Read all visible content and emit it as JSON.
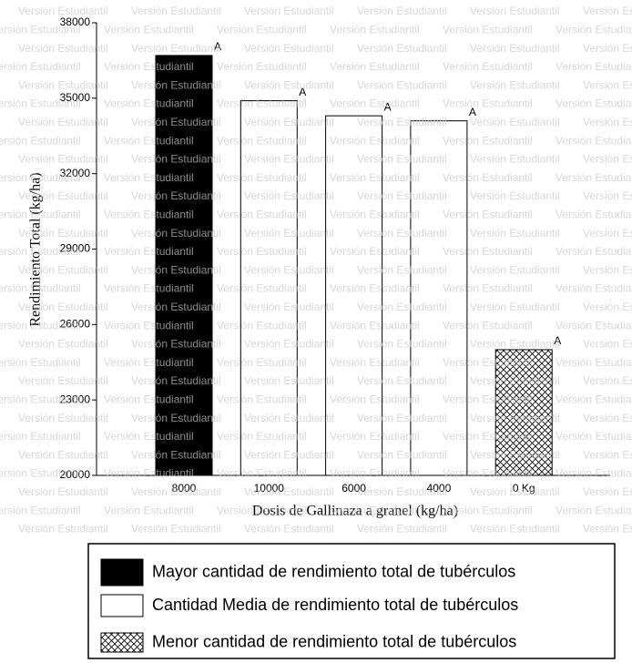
{
  "chart_data": {
    "type": "bar",
    "watermark": "Versión Estudiantil",
    "xlabel": "Dosis de Gallinaza a granel (kg/ha)",
    "ylabel": "Rendimiento Total (kg/ha)",
    "categories": [
      "8000",
      "10000",
      "6000",
      "4000",
      "0 Kg"
    ],
    "values": [
      36700,
      34900,
      34300,
      34100,
      25000
    ],
    "colors": [
      "#000000",
      "#ffffff",
      "#ffffff",
      "#ffffff",
      "#ffffff"
    ],
    "hatch": [
      false,
      false,
      false,
      false,
      true
    ],
    "annotations": [
      "A",
      "A",
      "A",
      "A",
      "A"
    ],
    "ylim": [
      20000,
      38000
    ],
    "yticks": [
      20000,
      23000,
      26000,
      29000,
      32000,
      35000,
      38000
    ],
    "legend": [
      {
        "label": "Mayor cantidad de rendimiento total de tubérculos",
        "color": "#000000",
        "hatch": false
      },
      {
        "label": "Cantidad Media de rendimiento total de tubérculos",
        "color": "#ffffff",
        "hatch": false
      },
      {
        "label": "Menor cantidad de rendimiento total de tubérculos",
        "color": "#ffffff",
        "hatch": true
      }
    ]
  }
}
